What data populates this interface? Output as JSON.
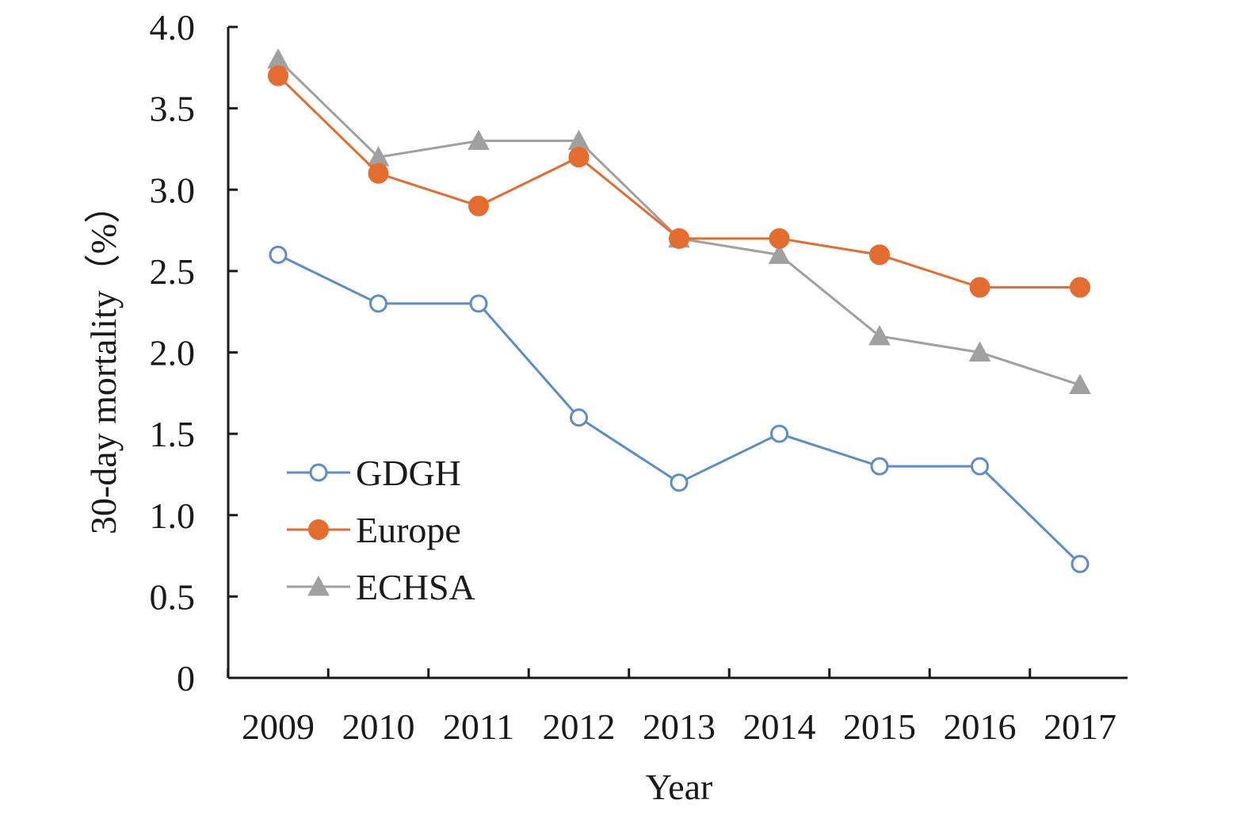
{
  "chart_data": {
    "type": "line",
    "title": "",
    "xlabel": "Year",
    "ylabel": "30-day mortality（%）",
    "categories": [
      "2009",
      "2010",
      "2011",
      "2012",
      "2013",
      "2014",
      "2015",
      "2016",
      "2017"
    ],
    "ylim": [
      0,
      4.0
    ],
    "yticks": [
      "0",
      "0.5",
      "1.0",
      "1.5",
      "2.0",
      "2.5",
      "3.0",
      "3.5",
      "4.0"
    ],
    "yticks_values": [
      0,
      0.5,
      1.0,
      1.5,
      2.0,
      2.5,
      3.0,
      3.5,
      4.0
    ],
    "grid": false,
    "legend_position": "bottom-left",
    "series": [
      {
        "name": "GDGH",
        "marker": "open-circle",
        "color": "#5b8ec9",
        "values": [
          2.6,
          2.3,
          2.3,
          1.6,
          1.2,
          1.5,
          1.3,
          1.3,
          0.7
        ]
      },
      {
        "name": "Europe",
        "marker": "filled-circle",
        "color": "#e46c2f",
        "values": [
          3.7,
          3.1,
          2.9,
          3.2,
          2.7,
          2.7,
          2.6,
          2.4,
          2.4
        ]
      },
      {
        "name": "ECHSA",
        "marker": "triangle",
        "color": "#a0a0a0",
        "values": [
          3.8,
          3.2,
          3.3,
          3.3,
          2.7,
          2.6,
          2.1,
          2.0,
          1.8
        ]
      }
    ]
  }
}
